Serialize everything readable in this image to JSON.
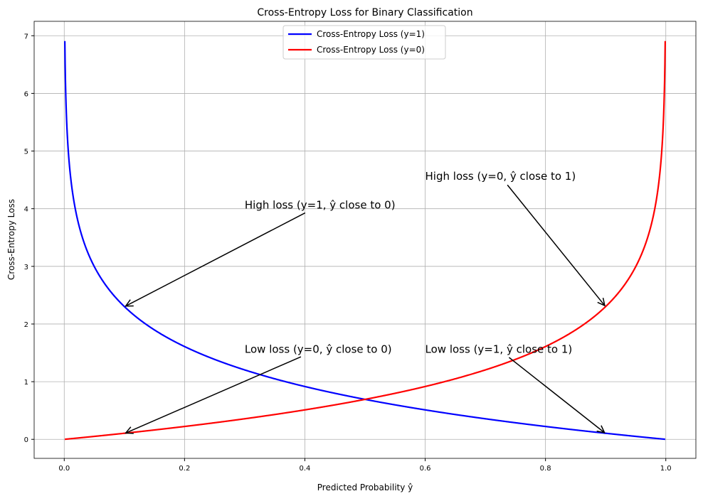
{
  "chart_data": {
    "type": "line",
    "title": "Cross-Entropy Loss for Binary Classification",
    "xlabel": "Predicted Probability ŷ",
    "ylabel": "Cross-Entropy Loss",
    "xlim": [
      -0.05,
      1.05
    ],
    "ylim": [
      -0.33,
      7.25
    ],
    "xticks": [
      0.0,
      0.2,
      0.4,
      0.6,
      0.8,
      1.0
    ],
    "xtick_labels": [
      "0.0",
      "0.2",
      "0.4",
      "0.6",
      "0.8",
      "1.0"
    ],
    "yticks": [
      0,
      1,
      2,
      3,
      4,
      5,
      6,
      7
    ],
    "ytick_labels": [
      "0",
      "1",
      "2",
      "3",
      "4",
      "5",
      "6",
      "7"
    ],
    "grid": true,
    "legend_position": "top-center",
    "series": [
      {
        "name": "Cross-Entropy Loss (y=1)",
        "color": "#0000ff",
        "function": "-log(p)",
        "x_range": [
          0.001,
          0.999
        ]
      },
      {
        "name": "Cross-Entropy Loss (y=0)",
        "color": "#ff0000",
        "function": "-log(1-p)",
        "x_range": [
          0.001,
          0.999
        ]
      }
    ],
    "annotations": [
      {
        "text": "High loss (y=1, ŷ close to 0)",
        "text_xy": [
          0.3,
          4.0
        ],
        "target_xy": [
          0.1,
          2.3
        ]
      },
      {
        "text": "High loss (y=0, ŷ close to 1)",
        "text_xy": [
          0.6,
          4.5
        ],
        "target_xy": [
          0.9,
          2.3
        ]
      },
      {
        "text": "Low loss (y=0, ŷ close to 0)",
        "text_xy": [
          0.3,
          1.5
        ],
        "target_xy": [
          0.1,
          0.1
        ]
      },
      {
        "text": "Low loss (y=1, ŷ close to 1)",
        "text_xy": [
          0.6,
          1.5
        ],
        "target_xy": [
          0.9,
          0.1
        ]
      }
    ]
  }
}
